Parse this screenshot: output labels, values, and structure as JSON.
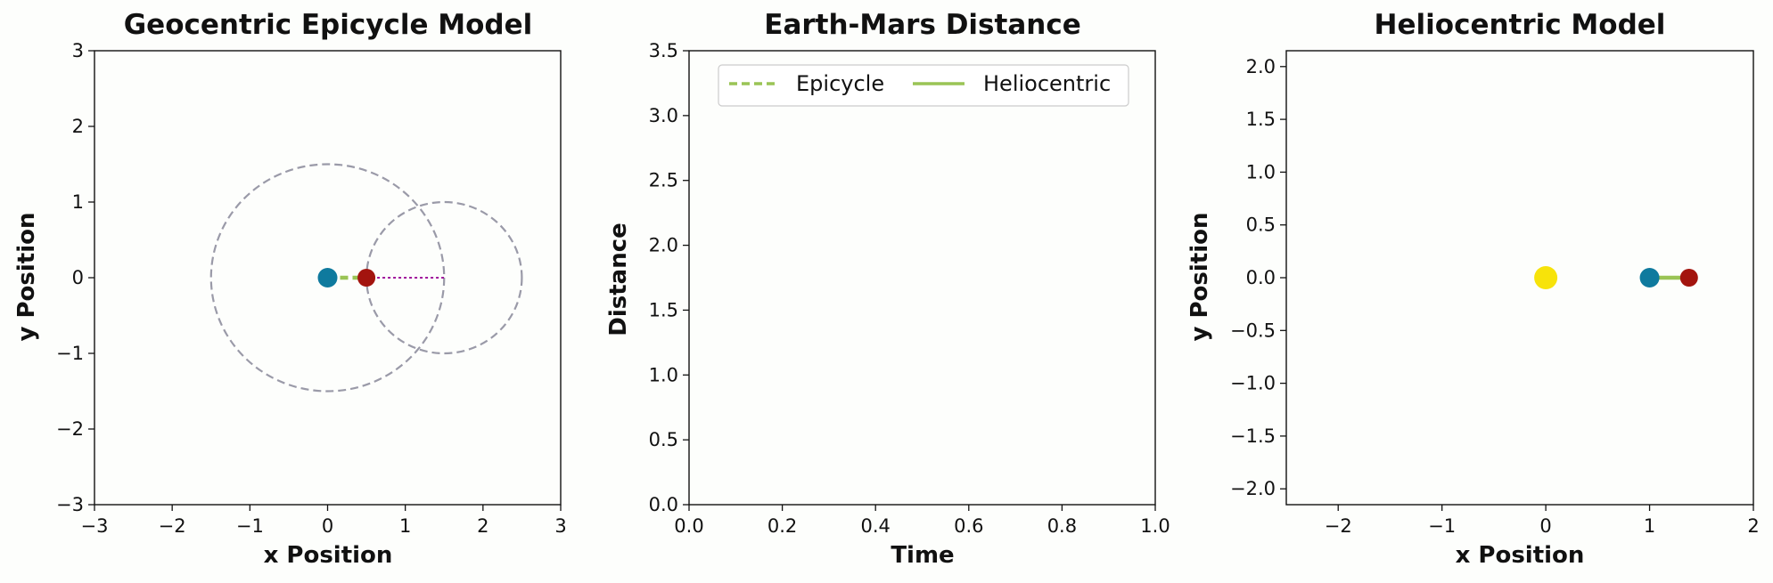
{
  "chart_data": [
    {
      "type": "scatter",
      "title": "Geocentric Epicycle Model",
      "xlabel": "x Position",
      "ylabel": "y Position",
      "xlim": [
        -3,
        3
      ],
      "ylim": [
        -3,
        3
      ],
      "xticks": [
        -3,
        -2,
        -1,
        0,
        1,
        2,
        3
      ],
      "yticks": [
        -3,
        -2,
        -1,
        0,
        1,
        2,
        3
      ],
      "xtick_labels": [
        "−3",
        "−2",
        "−1",
        "0",
        "1",
        "2",
        "3"
      ],
      "ytick_labels": [
        "−3",
        "−2",
        "−1",
        "0",
        "1",
        "2",
        "3"
      ],
      "circles": [
        {
          "name": "deferent",
          "cx": 0,
          "cy": 0,
          "r": 1.5,
          "color": "#9a9aa8",
          "style": "dashed"
        },
        {
          "name": "epicycle",
          "cx": 1.5,
          "cy": 0,
          "r": 1.0,
          "color": "#9a9aa8",
          "style": "dashed"
        }
      ],
      "lines": [
        {
          "name": "earth-mars",
          "x": [
            0,
            0.5
          ],
          "y": [
            0,
            0
          ],
          "color": "#9ac455",
          "style": "dashed"
        },
        {
          "name": "epicycle-radius",
          "x": [
            0.5,
            1.5
          ],
          "y": [
            0,
            0
          ],
          "color": "#a0149b",
          "style": "dotted"
        }
      ],
      "points": [
        {
          "name": "earth",
          "x": 0,
          "y": 0,
          "color": "#0f7a9e",
          "size": 11
        },
        {
          "name": "mars",
          "x": 0.5,
          "y": 0,
          "color": "#a3140e",
          "size": 10
        }
      ],
      "grid": false
    },
    {
      "type": "line",
      "title": "Earth-Mars Distance",
      "xlabel": "Time",
      "ylabel": "Distance",
      "xlim": [
        0,
        1
      ],
      "ylim": [
        0,
        3.5
      ],
      "xticks": [
        0,
        0.2,
        0.4,
        0.6,
        0.8,
        1.0
      ],
      "yticks": [
        0,
        0.5,
        1.0,
        1.5,
        2.0,
        2.5,
        3.0,
        3.5
      ],
      "xtick_labels": [
        "0.0",
        "0.2",
        "0.4",
        "0.6",
        "0.8",
        "1.0"
      ],
      "ytick_labels": [
        "0.0",
        "0.5",
        "1.0",
        "1.5",
        "2.0",
        "2.5",
        "3.0",
        "3.5"
      ],
      "series": [
        {
          "name": "Epicycle",
          "x": [],
          "y": [],
          "color": "#9ac455",
          "style": "dashed"
        },
        {
          "name": "Heliocentric",
          "x": [],
          "y": [],
          "color": "#9ac455",
          "style": "solid"
        }
      ],
      "legend": "top",
      "grid": false
    },
    {
      "type": "scatter",
      "title": "Heliocentric Model",
      "xlabel": "x Position",
      "ylabel": "y Position",
      "xlim": [
        -2.5,
        2.0
      ],
      "ylim": [
        -2.15,
        2.15
      ],
      "xticks": [
        -2,
        -1,
        0,
        1,
        2
      ],
      "yticks": [
        -2.0,
        -1.5,
        -1.0,
        -0.5,
        0.0,
        0.5,
        1.0,
        1.5,
        2.0
      ],
      "xtick_labels": [
        "−2",
        "−1",
        "0",
        "1",
        "2"
      ],
      "ytick_labels": [
        "−2.0",
        "−1.5",
        "−1.0",
        "−0.5",
        "0.0",
        "0.5",
        "1.0",
        "1.5",
        "2.0"
      ],
      "lines": [
        {
          "name": "earth-mars",
          "x": [
            1.0,
            1.38
          ],
          "y": [
            0,
            0
          ],
          "color": "#9ac455",
          "style": "solid"
        }
      ],
      "points": [
        {
          "name": "sun",
          "x": 0,
          "y": 0,
          "color": "#f7e30a",
          "size": 13
        },
        {
          "name": "earth",
          "x": 1.0,
          "y": 0,
          "color": "#0f7a9e",
          "size": 11
        },
        {
          "name": "mars",
          "x": 1.38,
          "y": 0,
          "color": "#a3140e",
          "size": 10
        }
      ],
      "grid": false
    }
  ]
}
